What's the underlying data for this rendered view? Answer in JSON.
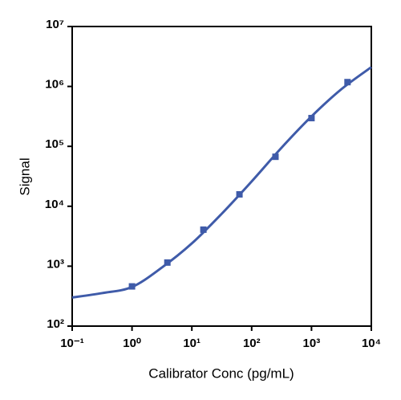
{
  "chart_data": {
    "type": "scatter",
    "x_label": "Calibrator Conc (pg/mL)",
    "y_label": "Signal",
    "xscale": "log",
    "yscale": "log",
    "xlim": [
      0.1,
      10000
    ],
    "ylim": [
      100,
      10000000
    ],
    "xticks": [
      {
        "value": 0.1,
        "label": "10⁻¹"
      },
      {
        "value": 1,
        "label": "10⁰"
      },
      {
        "value": 10,
        "label": "10¹"
      },
      {
        "value": 100,
        "label": "10²"
      },
      {
        "value": 1000,
        "label": "10³"
      },
      {
        "value": 10000,
        "label": "10⁴"
      }
    ],
    "yticks": [
      {
        "value": 100,
        "label": "10²"
      },
      {
        "value": 1000,
        "label": "10³"
      },
      {
        "value": 10000,
        "label": "10⁴"
      },
      {
        "value": 100000,
        "label": "10⁵"
      },
      {
        "value": 1000000,
        "label": "10⁶"
      },
      {
        "value": 10000000,
        "label": "10⁷"
      }
    ],
    "series": [
      {
        "kind": "points",
        "color": "#3f5ba9",
        "x": [
          1,
          3.9,
          15.6,
          62.5,
          250,
          1000,
          4000
        ],
        "values": [
          460,
          1150,
          4070,
          15800,
          67000,
          296000,
          1180000
        ]
      },
      {
        "kind": "curve",
        "color": "#3f5ba9",
        "x": [
          0.1,
          0.316,
          1,
          3.16,
          10,
          31.6,
          100,
          316,
          1000,
          3162,
          10000
        ],
        "values": [
          300,
          355,
          450,
          950,
          2400,
          7500,
          26000,
          95000,
          316000,
          900000,
          2100000
        ]
      }
    ]
  }
}
